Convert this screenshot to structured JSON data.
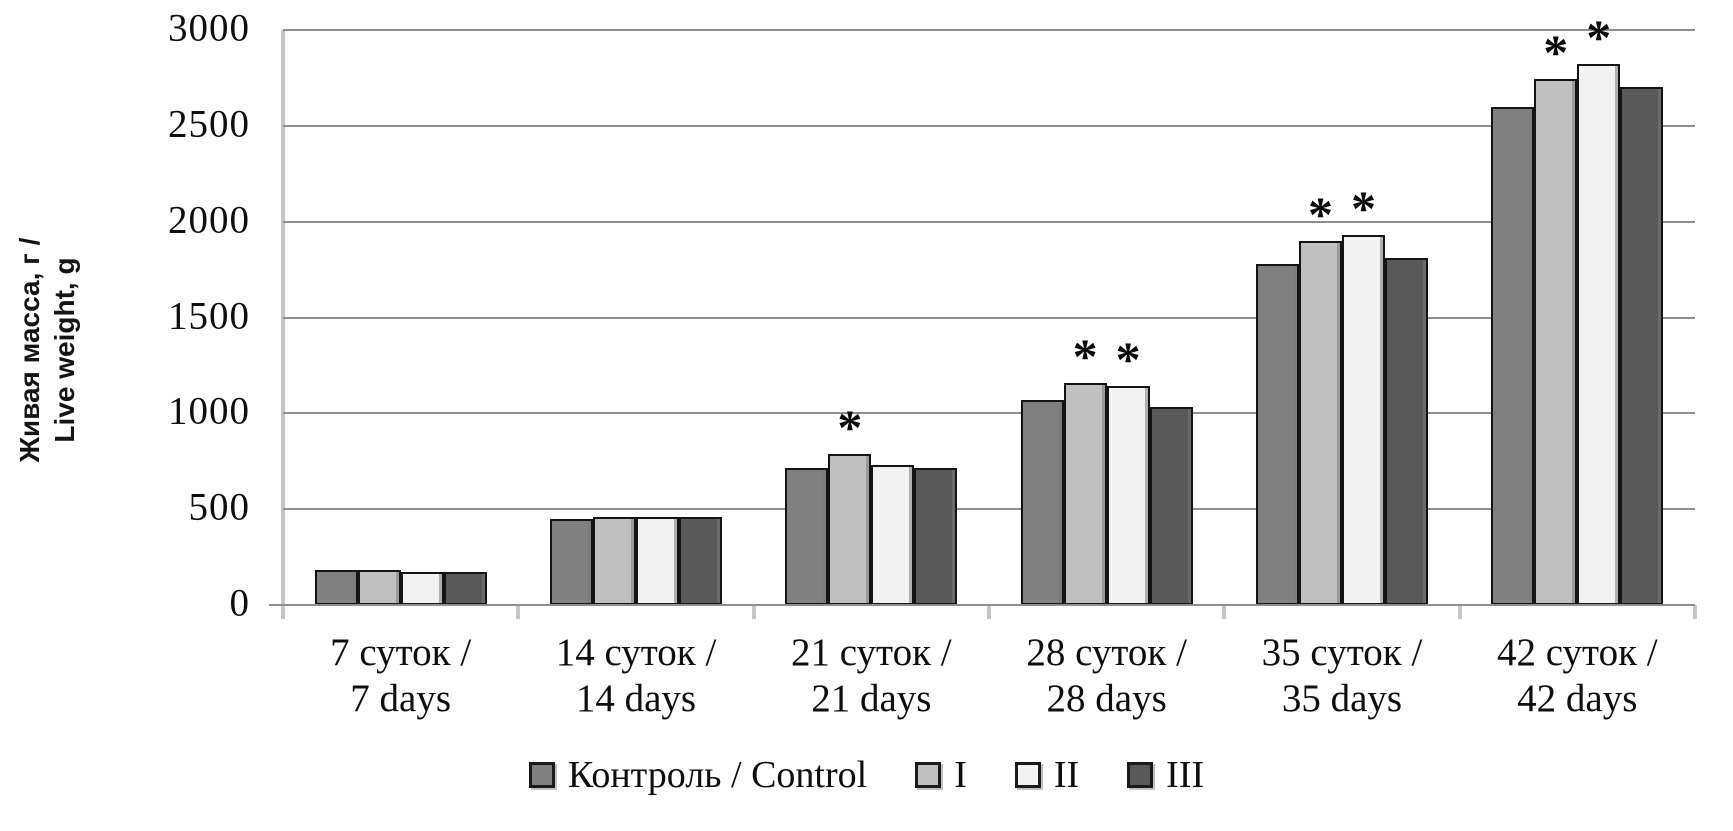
{
  "chart_data": {
    "type": "bar",
    "title": "",
    "ylabel_lines": [
      "Живая масса, г /",
      "Live weight, g"
    ],
    "xlabel": "",
    "ylim": [
      0,
      3000
    ],
    "yticks": [
      0,
      500,
      1000,
      1500,
      2000,
      2500,
      3000
    ],
    "grid": "horizontal",
    "legend_position": "bottom",
    "significance_marker": "*",
    "categories": [
      [
        "7 суток /",
        "7 days"
      ],
      [
        "14 суток /",
        "14 days"
      ],
      [
        "21 суток /",
        "21 days"
      ],
      [
        "28 суток /",
        "28 days"
      ],
      [
        "35 суток /",
        "35 days"
      ],
      [
        "42 суток /",
        "42 days"
      ]
    ],
    "series": [
      {
        "name": "Контроль / Control",
        "color": "#808080",
        "values": [
          180,
          450,
          715,
          1070,
          1780,
          2600
        ],
        "significant": [
          false,
          false,
          false,
          false,
          false,
          false
        ]
      },
      {
        "name": "I",
        "color": "#c0c0c0",
        "values": [
          180,
          460,
          790,
          1160,
          1900,
          2745
        ],
        "significant": [
          false,
          false,
          true,
          true,
          true,
          true
        ]
      },
      {
        "name": "II",
        "color": "#f2f2f2",
        "values": [
          170,
          460,
          730,
          1145,
          1930,
          2820
        ],
        "significant": [
          false,
          false,
          false,
          true,
          true,
          true
        ]
      },
      {
        "name": "III",
        "color": "#595959",
        "values": [
          170,
          460,
          715,
          1035,
          1810,
          2700
        ],
        "significant": [
          false,
          false,
          false,
          false,
          false,
          false
        ]
      }
    ]
  }
}
